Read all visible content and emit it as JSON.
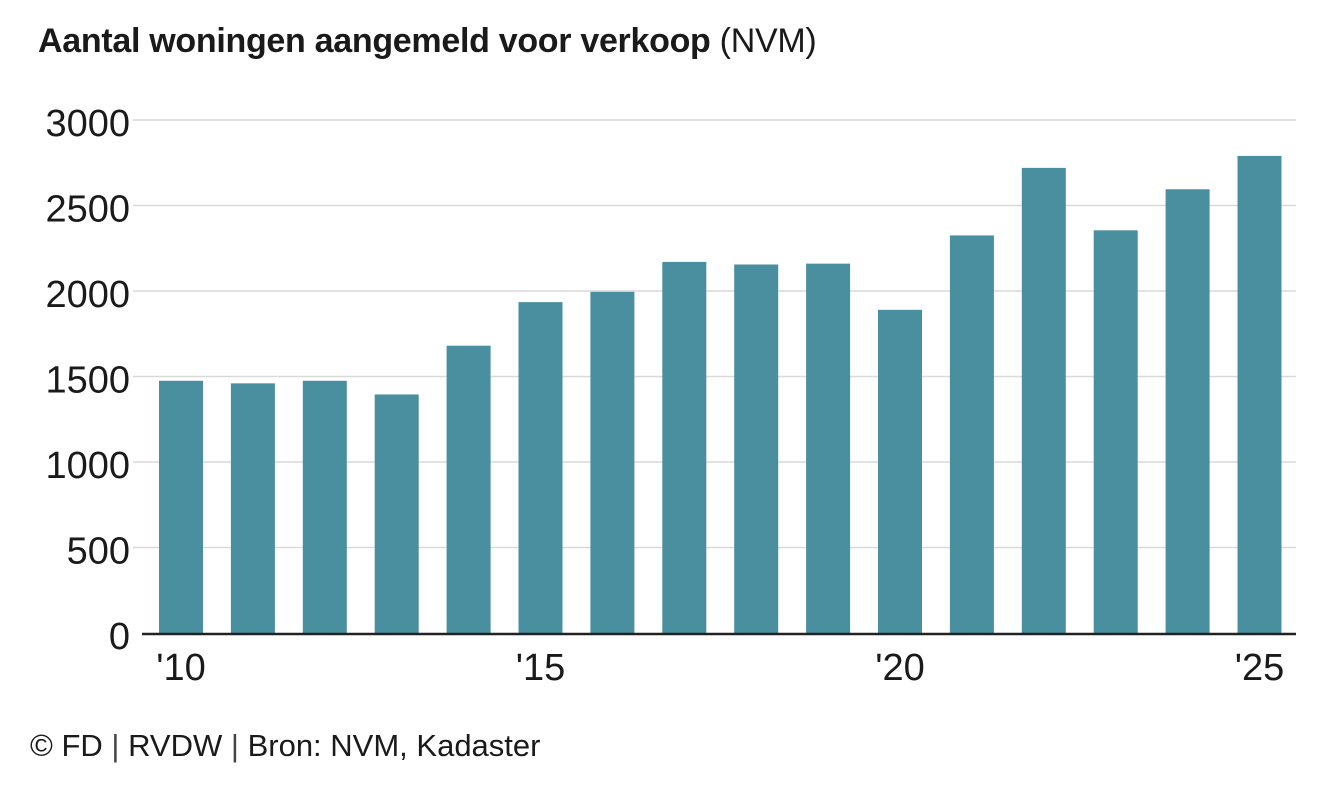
{
  "title": {
    "main": "Aantal woningen aangemeld voor verkoop",
    "suffix": "(NVM)"
  },
  "footer": {
    "copyright_symbol": "©",
    "items": [
      "FD",
      "RVDW",
      "Bron: NVM, Kadaster"
    ],
    "separator": "|"
  },
  "chart_data": {
    "type": "bar",
    "categories": [
      "2010",
      "2011",
      "2012",
      "2013",
      "2014",
      "2015",
      "2016",
      "2017",
      "2018",
      "2019",
      "2020",
      "2021",
      "2022",
      "2023",
      "2024",
      "2025"
    ],
    "values": [
      1475,
      1460,
      1475,
      1395,
      1680,
      1935,
      1995,
      2170,
      2155,
      2160,
      1890,
      2325,
      2720,
      2355,
      2595,
      2790
    ],
    "x_tick_labels": [
      {
        "category": "2010",
        "label": "'10"
      },
      {
        "category": "2015",
        "label": "'15"
      },
      {
        "category": "2020",
        "label": "'20"
      },
      {
        "category": "2025",
        "label": "'25"
      }
    ],
    "y_ticks": [
      0,
      500,
      1000,
      1500,
      2000,
      2500,
      3000
    ],
    "ylim": [
      0,
      3000
    ],
    "grid": true,
    "bar_color": "#4a8fa0",
    "grid_color": "#d9d9d9",
    "axis_color": "#222222"
  }
}
